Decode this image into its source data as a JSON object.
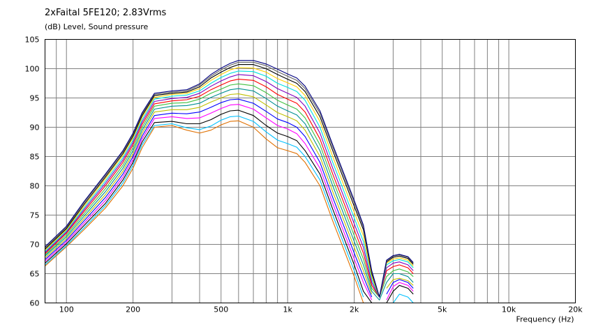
{
  "chart_data": {
    "type": "line",
    "title": "2xFaital 5FE120; 2.83Vrms",
    "ylabel": "(dB)  Level, Sound pressure",
    "xlabel": "Frequency  (Hz)",
    "xscale": "log",
    "xlim": [
      80,
      20000
    ],
    "ylim": [
      60,
      105
    ],
    "yticks": [
      60,
      65,
      70,
      75,
      80,
      85,
      90,
      95,
      100,
      105
    ],
    "xticks": [
      {
        "value": 100,
        "label": "100"
      },
      {
        "value": 200,
        "label": "200"
      },
      {
        "value": 500,
        "label": "500"
      },
      {
        "value": 1000,
        "label": "1k"
      },
      {
        "value": 2000,
        "label": "2k"
      },
      {
        "value": 5000,
        "label": "5k"
      },
      {
        "value": 10000,
        "label": "10k"
      },
      {
        "value": 20000,
        "label": "20k"
      }
    ],
    "grid": true,
    "x": [
      80,
      100,
      120,
      150,
      180,
      200,
      220,
      250,
      300,
      350,
      400,
      450,
      500,
      550,
      600,
      700,
      800,
      900,
      1000,
      1100,
      1200,
      1400,
      1600,
      1800,
      2000,
      2200,
      2400,
      2600,
      2800,
      3000,
      3200,
      3500,
      3700
    ],
    "series": [
      {
        "color": "#e07000",
        "values": [
          66.3,
          69.6,
          72.5,
          76.2,
          80.0,
          83.0,
          86.5,
          90.0,
          90.3,
          89.5,
          89.0,
          89.5,
          90.4,
          91.0,
          91.1,
          90.0,
          88.0,
          86.5,
          86.0,
          85.5,
          84.0,
          80.0,
          74.0,
          69.0,
          64.5,
          60.0,
          null,
          null,
          null,
          null,
          null,
          null,
          null
        ]
      },
      {
        "color": "#00c0ff",
        "values": [
          66.5,
          69.8,
          72.8,
          76.6,
          80.5,
          83.5,
          87.0,
          90.3,
          90.6,
          89.9,
          89.6,
          90.2,
          91.2,
          91.8,
          91.9,
          91.0,
          89.2,
          87.8,
          87.2,
          86.6,
          85.0,
          81.0,
          75.0,
          70.0,
          65.5,
          61.0,
          null,
          null,
          null,
          60.0,
          61.5,
          61.0,
          60.0
        ]
      },
      {
        "color": "#000000",
        "values": [
          66.8,
          70.1,
          73.2,
          77.0,
          81.0,
          84.0,
          87.5,
          90.8,
          91.0,
          90.6,
          90.6,
          91.3,
          92.2,
          92.8,
          92.9,
          92.0,
          90.3,
          89.0,
          88.4,
          87.7,
          86.0,
          82.0,
          76.0,
          71.0,
          66.5,
          62.0,
          60.0,
          null,
          60.0,
          62.0,
          63.0,
          62.5,
          61.5
        ]
      },
      {
        "color": "#ff00ff",
        "values": [
          67.1,
          70.4,
          73.6,
          77.5,
          81.5,
          84.5,
          88.0,
          91.5,
          91.8,
          91.5,
          91.6,
          92.4,
          93.2,
          93.8,
          93.9,
          93.1,
          91.6,
          90.3,
          89.7,
          88.9,
          87.2,
          83.0,
          77.0,
          72.0,
          67.5,
          63.5,
          60.5,
          null,
          60.5,
          62.8,
          63.5,
          63.0,
          62.0
        ]
      },
      {
        "color": "#0000ff",
        "values": [
          67.4,
          70.7,
          74.0,
          78.0,
          82.0,
          85.0,
          88.5,
          92.0,
          92.4,
          92.3,
          92.6,
          93.4,
          94.2,
          94.7,
          94.8,
          94.1,
          92.7,
          91.4,
          90.8,
          90.0,
          88.4,
          84.0,
          78.0,
          73.0,
          68.5,
          64.5,
          61.0,
          null,
          61.5,
          63.5,
          64.0,
          63.5,
          62.5
        ]
      },
      {
        "color": "#c0c000",
        "values": [
          67.7,
          71.0,
          74.4,
          78.5,
          82.5,
          85.5,
          89.0,
          92.6,
          93.0,
          93.0,
          93.4,
          94.3,
          95.0,
          95.6,
          95.7,
          95.2,
          93.8,
          92.5,
          91.8,
          91.1,
          89.5,
          85.0,
          79.0,
          74.0,
          69.5,
          65.5,
          61.5,
          null,
          62.5,
          64.0,
          64.2,
          63.8,
          63.0
        ]
      },
      {
        "color": "#009090",
        "values": [
          68.0,
          71.3,
          74.8,
          79.0,
          83.0,
          86.0,
          89.5,
          93.1,
          93.6,
          93.7,
          94.1,
          95.1,
          95.8,
          96.4,
          96.6,
          96.2,
          94.9,
          93.6,
          92.8,
          92.1,
          90.6,
          86.0,
          80.0,
          75.0,
          70.5,
          66.5,
          62.0,
          60.5,
          63.5,
          65.0,
          65.0,
          64.5,
          63.5
        ]
      },
      {
        "color": "#40c040",
        "values": [
          68.2,
          71.6,
          75.2,
          79.5,
          83.5,
          86.5,
          90.0,
          93.6,
          94.1,
          94.2,
          94.8,
          95.8,
          96.5,
          97.2,
          97.4,
          97.1,
          95.9,
          94.6,
          93.8,
          93.1,
          91.6,
          87.0,
          81.0,
          76.0,
          71.5,
          67.5,
          62.5,
          61.0,
          64.5,
          65.5,
          65.8,
          65.3,
          64.5
        ]
      },
      {
        "color": "#ff0000",
        "values": [
          68.4,
          71.9,
          75.6,
          80.0,
          84.0,
          87.0,
          90.5,
          94.0,
          94.5,
          94.7,
          95.3,
          96.4,
          97.2,
          97.9,
          98.2,
          98.0,
          96.9,
          95.6,
          94.8,
          94.1,
          92.6,
          88.0,
          82.0,
          77.0,
          72.5,
          68.5,
          63.0,
          61.0,
          65.5,
          66.2,
          66.5,
          66.0,
          65.0
        ]
      },
      {
        "color": "#8000c0",
        "values": [
          68.6,
          72.1,
          75.9,
          80.4,
          84.4,
          87.4,
          90.9,
          94.4,
          94.9,
          95.1,
          95.8,
          97.0,
          97.9,
          98.6,
          99.0,
          98.8,
          97.8,
          96.6,
          95.8,
          95.1,
          93.6,
          89.0,
          83.0,
          78.0,
          73.5,
          69.5,
          63.5,
          61.0,
          66.0,
          66.8,
          67.0,
          66.5,
          65.5
        ]
      },
      {
        "color": "#00e0e0",
        "values": [
          68.8,
          72.3,
          76.2,
          80.8,
          84.8,
          87.8,
          91.3,
          94.8,
          95.3,
          95.5,
          96.2,
          97.5,
          98.5,
          99.2,
          99.6,
          99.5,
          98.7,
          97.5,
          96.8,
          96.1,
          94.6,
          90.0,
          84.0,
          79.0,
          74.5,
          70.5,
          64.0,
          61.0,
          66.5,
          67.2,
          67.4,
          67.0,
          66.0
        ]
      },
      {
        "color": "#ffd000",
        "values": [
          69.0,
          72.5,
          76.5,
          81.2,
          85.2,
          88.2,
          91.7,
          95.1,
          95.6,
          95.8,
          96.6,
          98.0,
          99.0,
          99.8,
          100.2,
          100.1,
          99.4,
          98.3,
          97.6,
          96.9,
          95.4,
          91.0,
          85.0,
          80.0,
          75.5,
          71.5,
          64.5,
          61.0,
          66.8,
          67.5,
          67.7,
          67.3,
          66.3
        ]
      },
      {
        "color": "#000000",
        "values": [
          69.2,
          72.7,
          76.8,
          81.5,
          85.5,
          88.5,
          92.0,
          95.4,
          95.8,
          96.0,
          96.9,
          98.4,
          99.4,
          100.2,
          100.7,
          100.7,
          100.0,
          99.0,
          98.2,
          97.5,
          96.1,
          91.8,
          86.0,
          81.0,
          76.5,
          72.5,
          65.0,
          61.0,
          67.0,
          67.8,
          68.0,
          67.6,
          66.6
        ]
      },
      {
        "color": "#606060",
        "values": [
          69.4,
          72.9,
          77.1,
          81.8,
          85.8,
          88.8,
          92.3,
          95.6,
          96.0,
          96.2,
          97.2,
          98.7,
          99.8,
          100.6,
          101.1,
          101.1,
          100.5,
          99.5,
          98.7,
          98.0,
          96.6,
          92.4,
          86.6,
          81.6,
          77.1,
          73.0,
          65.3,
          61.0,
          67.2,
          68.0,
          68.2,
          67.8,
          66.8
        ]
      },
      {
        "color": "#000080",
        "values": [
          69.6,
          73.1,
          77.3,
          82.0,
          86.0,
          89.0,
          92.5,
          95.8,
          96.2,
          96.4,
          97.4,
          99.0,
          100.1,
          100.9,
          101.4,
          101.4,
          100.8,
          99.9,
          99.1,
          98.4,
          97.0,
          92.8,
          87.0,
          82.0,
          77.5,
          73.3,
          65.5,
          61.0,
          67.3,
          68.1,
          68.3,
          67.9,
          66.9
        ]
      }
    ]
  }
}
